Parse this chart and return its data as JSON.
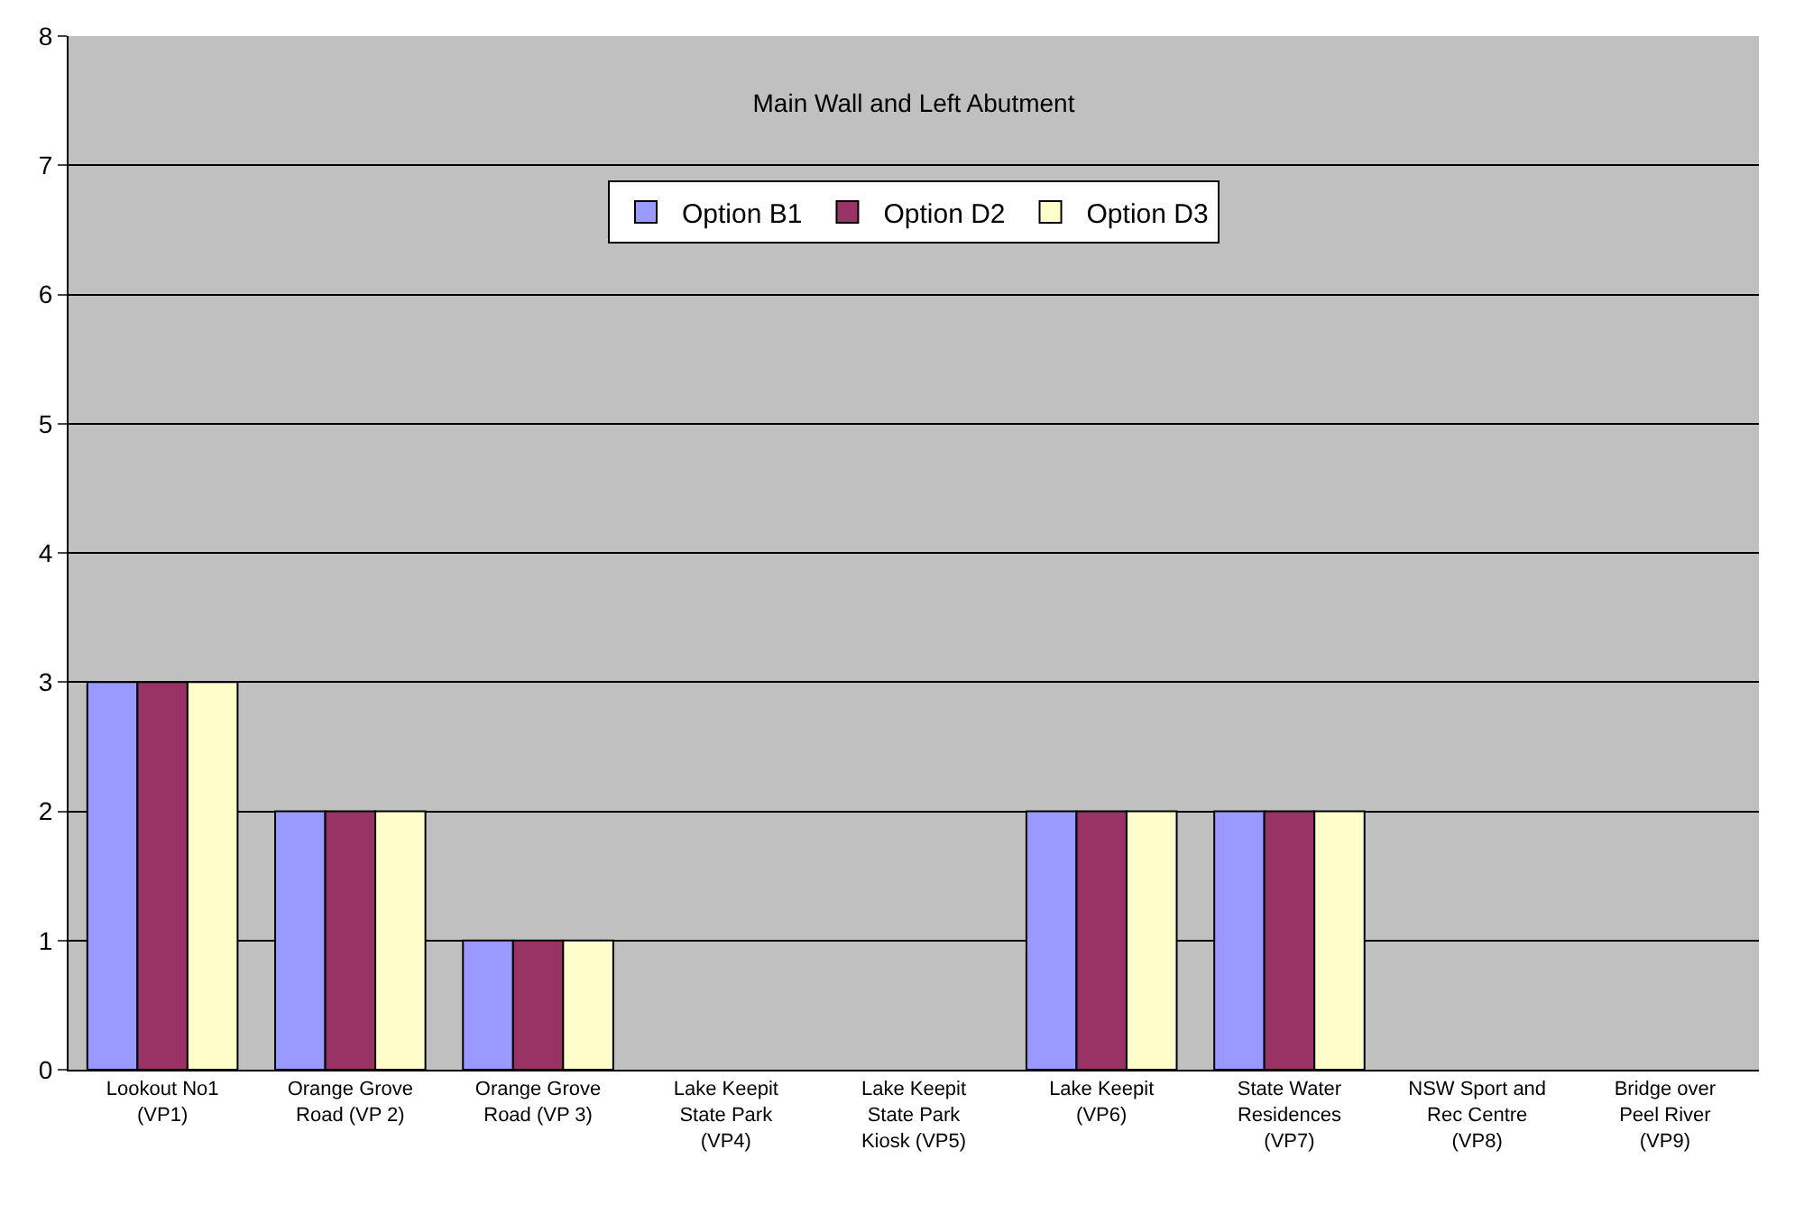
{
  "chart_data": {
    "type": "bar",
    "title": "Main Wall and Left Abutment",
    "categories": [
      "Lookout No1 (VP1)",
      "Orange Grove Road (VP 2)",
      "Orange Grove Road (VP 3)",
      "Lake Keepit State Park (VP4)",
      "Lake Keepit State Park Kiosk (VP5)",
      "Lake Keepit (VP6)",
      "State Water Residences (VP7)",
      "NSW Sport and Rec Centre (VP8)",
      "Bridge over Peel River (VP9)"
    ],
    "series": [
      {
        "name": "Option B1",
        "color": "#9999ff",
        "values": [
          3,
          2,
          1,
          0,
          0,
          2,
          2,
          0,
          0
        ]
      },
      {
        "name": "Option D2",
        "color": "#993366",
        "values": [
          3,
          2,
          1,
          0,
          0,
          2,
          2,
          0,
          0
        ]
      },
      {
        "name": "Option D3",
        "color": "#ffffcc",
        "values": [
          3,
          2,
          1,
          0,
          0,
          2,
          2,
          0,
          0
        ]
      }
    ],
    "ylim": [
      0,
      8
    ],
    "yticks": [
      0,
      1,
      2,
      3,
      4,
      5,
      6,
      7,
      8
    ],
    "grid": "y",
    "legend": "top"
  }
}
